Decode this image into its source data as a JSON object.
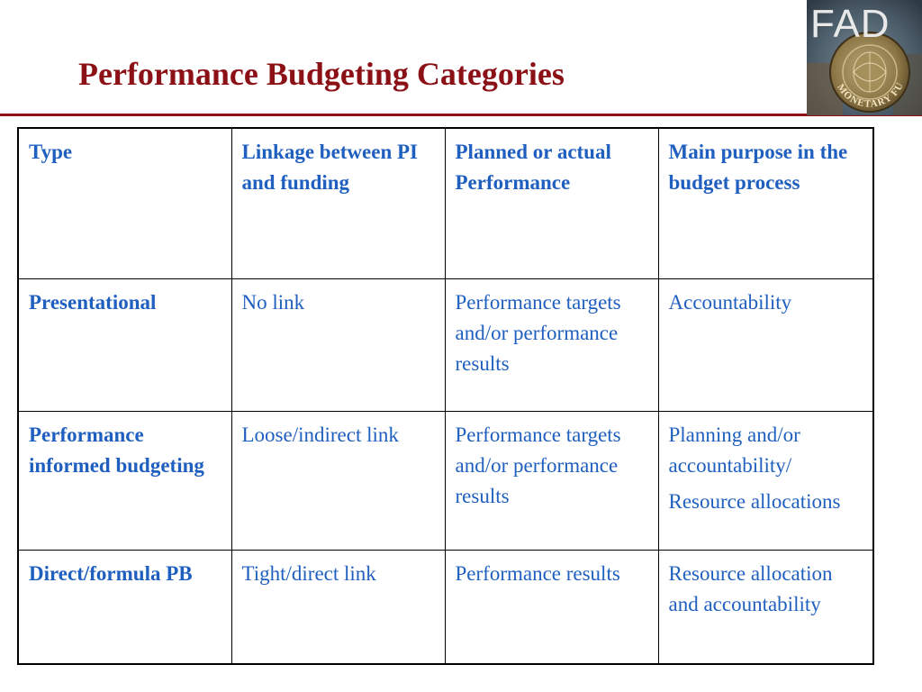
{
  "title": "Performance Budgeting Categories",
  "logo": {
    "text": "FAD",
    "seal_text": "MONETARY FUND"
  },
  "colors": {
    "title": "#8b1117",
    "rule": "#8b1117",
    "table_text": "#1f5fbf",
    "border": "#000000"
  },
  "table": {
    "headers": [
      "Type",
      "Linkage between PI and funding",
      "Planned or actual Performance",
      "Main purpose in the budget process"
    ],
    "rows": [
      {
        "type": "Presentational",
        "linkage": "No link",
        "performance": "Performance targets and/or performance results",
        "purpose": [
          "Accountability"
        ]
      },
      {
        "type": "Performance informed budgeting",
        "linkage": "Loose/indirect link",
        "performance": "Performance targets and/or performance results",
        "purpose": [
          "Planning and/or accountability/",
          "Resource allocations"
        ]
      },
      {
        "type": "Direct/formula PB",
        "linkage": "Tight/direct link",
        "performance": "Performance results",
        "purpose": [
          "Resource allocation and accountability"
        ]
      }
    ]
  }
}
